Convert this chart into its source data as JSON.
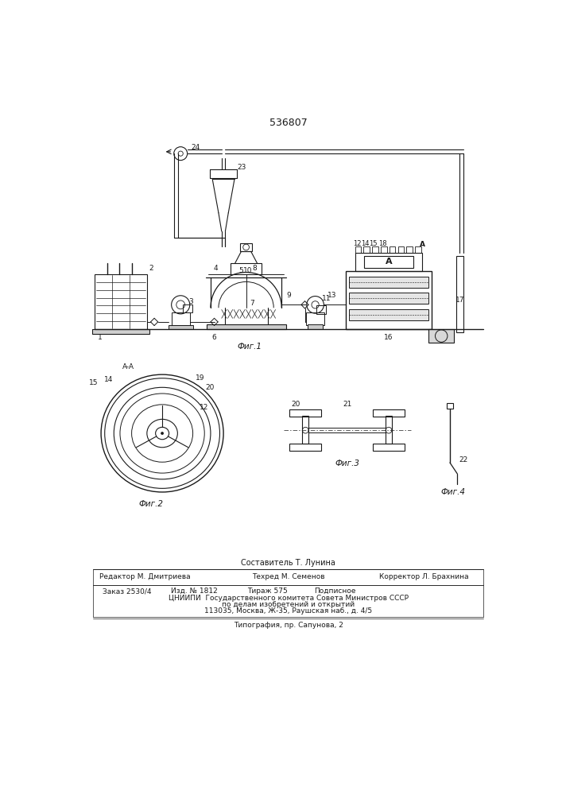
{
  "patent_number": "536807",
  "fig1_label": "Фиг.1",
  "fig2_label": "Фиг.2",
  "fig3_label": "Фиг.3",
  "fig4_label": "Фиг.4",
  "section_label": "A-A",
  "line_color": "#1a1a1a",
  "bg_color": "#ffffff",
  "footer_composer": "Составитель Т. Лунина",
  "footer_editor": "Редактор М. Дмитриева",
  "footer_tech": "Техред М. Семенов",
  "footer_corr": "Корректор Л. Брахнина",
  "footer_order": "Заказ 2530/4",
  "footer_izd": "Изд. № 1812",
  "footer_tir": "Тираж 575",
  "footer_sub": "Подписное",
  "footer_cniip1": "ЦНИИПИ  Государственного комитета Совета Министров СССР",
  "footer_cniip2": "по делам изобретений и открытий",
  "footer_addr": "113035, Москва, Ж-35, Раушская наб., д. 4/5",
  "footer_typo": "Типография, пр. Сапунова, 2"
}
